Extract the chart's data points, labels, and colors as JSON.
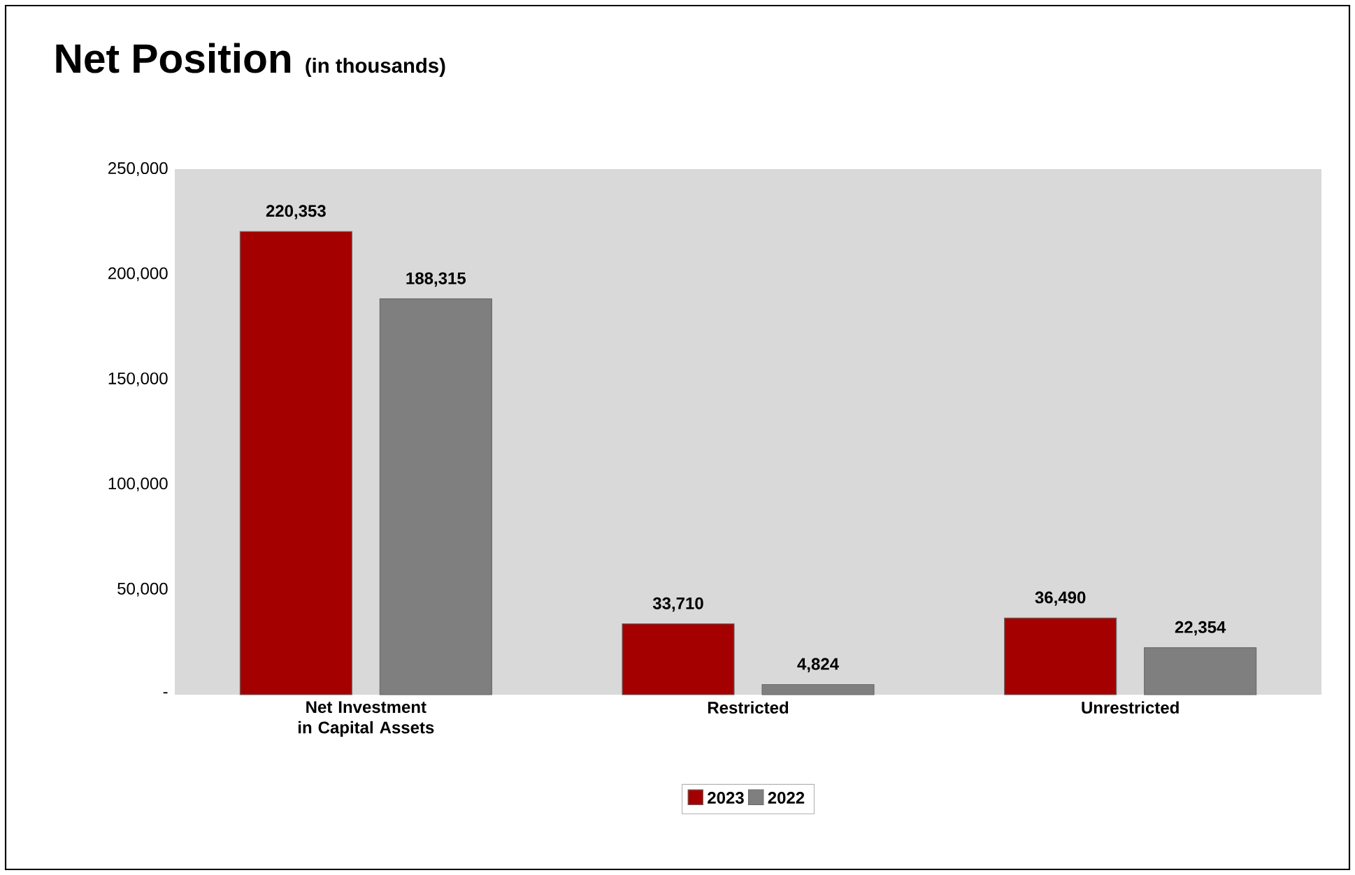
{
  "chart_data": {
    "type": "bar",
    "title": "Net Position",
    "subtitle": "(in thousands)",
    "categories": [
      "Net Investment in Capital Assets",
      "Restricted",
      "Unrestricted"
    ],
    "series": [
      {
        "name": "2023",
        "color": "#a50000",
        "values": [
          220353,
          33710,
          36490
        ],
        "value_labels": [
          "220,353",
          "33,710",
          "36,490"
        ]
      },
      {
        "name": "2022",
        "color": "#7f7f7f",
        "values": [
          188315,
          4824,
          22354
        ],
        "value_labels": [
          "188,315",
          "4,824",
          "22,354"
        ]
      }
    ],
    "ylim": [
      0,
      250000
    ],
    "yticks": [
      {
        "value": 0,
        "label": "-"
      },
      {
        "value": 50000,
        "label": "50,000"
      },
      {
        "value": 100000,
        "label": "100,000"
      },
      {
        "value": 150000,
        "label": "150,000"
      },
      {
        "value": 200000,
        "label": "200,000"
      },
      {
        "value": 250000,
        "label": "250,000"
      }
    ],
    "grid": false,
    "legend": "bottom"
  }
}
